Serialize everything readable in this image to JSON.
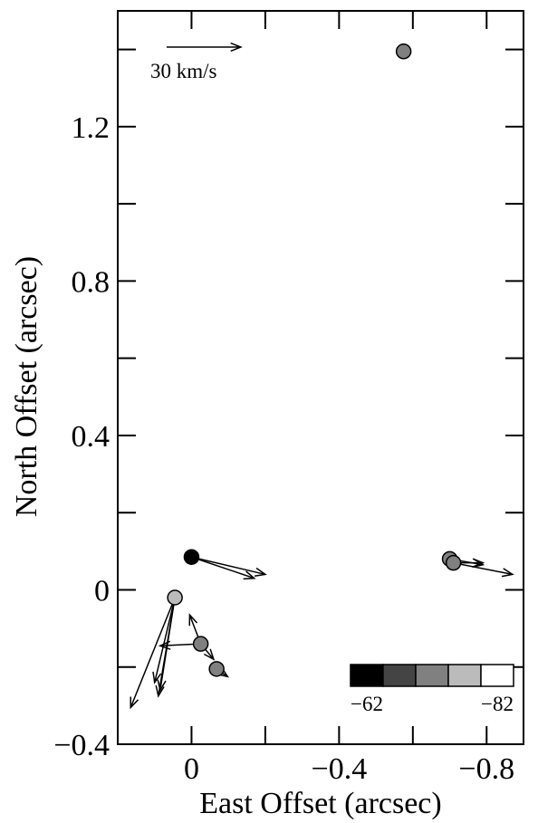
{
  "chart_data": {
    "type": "scatter",
    "title": "",
    "xlabel": "East Offset (arcsec)",
    "ylabel": "North Offset (arcsec)",
    "xlim": [
      0.2,
      -0.9
    ],
    "ylim": [
      -0.4,
      1.5
    ],
    "x_ticks": [
      {
        "value": 0,
        "label": "0"
      },
      {
        "value": -0.4,
        "label": "−0.4"
      },
      {
        "value": -0.8,
        "label": "−0.8"
      }
    ],
    "x_minor_ticks": [
      0.2,
      -0.2,
      -0.6
    ],
    "y_ticks": [
      {
        "value": -0.4,
        "label": "−0.4"
      },
      {
        "value": 0,
        "label": "0"
      },
      {
        "value": 0.4,
        "label": "0.4"
      },
      {
        "value": 0.8,
        "label": "0.8"
      },
      {
        "value": 1.2,
        "label": "1.2"
      }
    ],
    "y_minor_ticks": [
      -0.2,
      0.2,
      0.6,
      1.0,
      1.4
    ],
    "grid": false,
    "velocity_scale": {
      "label": "30 km/s",
      "speed_kms": 30,
      "arcsec_per_kms": 0.0067
    },
    "colorbar": {
      "min_label": "−62",
      "max_label": "−82",
      "colors": [
        "#000000",
        "#444444",
        "#808080",
        "#bbbbbb",
        "#ffffff"
      ]
    },
    "points": [
      {
        "x": 0.0,
        "y": 0.085,
        "color": "#000000",
        "vectors": [
          [
            -0.17,
            -0.055
          ],
          [
            -0.2,
            -0.045
          ]
        ]
      },
      {
        "x": 0.045,
        "y": -0.02,
        "color": "#bbbbbb",
        "vectors": [
          [
            0.12,
            -0.285
          ],
          [
            0.045,
            -0.255
          ],
          [
            0.04,
            -0.24
          ],
          [
            0.055,
            -0.22
          ]
        ]
      },
      {
        "x": -0.025,
        "y": -0.14,
        "color": "#808080",
        "vectors": [
          [
            0.03,
            0.075
          ],
          [
            -0.035,
            -0.04
          ],
          [
            0.11,
            -0.005
          ]
        ]
      },
      {
        "x": -0.068,
        "y": -0.205,
        "color": "#808080",
        "vectors": [
          [
            -0.03,
            -0.02
          ],
          [
            0.015,
            -0.01
          ]
        ]
      },
      {
        "x": -0.7,
        "y": 0.08,
        "color": "#808080",
        "vectors": [
          [
            -0.09,
            -0.015
          ]
        ]
      },
      {
        "x": -0.71,
        "y": 0.07,
        "color": "#808080",
        "vectors": [
          [
            -0.16,
            -0.03
          ],
          [
            -0.08,
            0.0
          ]
        ]
      },
      {
        "x": -0.575,
        "y": 1.395,
        "color": "#808080",
        "vectors": []
      }
    ]
  }
}
